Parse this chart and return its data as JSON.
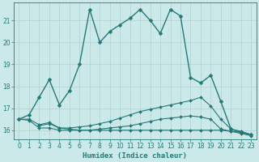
{
  "title": "",
  "xlabel": "Humidex (Indice chaleur)",
  "background_color": "#cce9e9",
  "grid_color": "#b0d0d0",
  "line_color": "#267878",
  "xlim": [
    -0.5,
    23.5
  ],
  "ylim": [
    15.6,
    21.8
  ],
  "yticks": [
    16,
    17,
    18,
    19,
    20,
    21
  ],
  "xticks": [
    0,
    1,
    2,
    3,
    4,
    5,
    6,
    7,
    8,
    9,
    10,
    11,
    12,
    13,
    14,
    15,
    16,
    17,
    18,
    19,
    20,
    21,
    22,
    23
  ],
  "series": [
    {
      "x": [
        0,
        1,
        2,
        3,
        4,
        5,
        6,
        7,
        8,
        9,
        10,
        11,
        12,
        13,
        14,
        15,
        16,
        17,
        18,
        19,
        20,
        21,
        22,
        23
      ],
      "y": [
        16.5,
        16.7,
        17.5,
        18.3,
        17.15,
        17.8,
        19.0,
        21.5,
        20.0,
        20.5,
        20.8,
        21.1,
        21.5,
        21.0,
        20.4,
        21.5,
        21.2,
        18.4,
        18.15,
        18.5,
        17.3,
        16.05,
        15.9,
        15.8
      ],
      "linewidth": 1.0,
      "markersize": 2.5
    },
    {
      "x": [
        0,
        1,
        2,
        3,
        4,
        5,
        6,
        7,
        8,
        9,
        10,
        11,
        12,
        13,
        14,
        15,
        16,
        17,
        18,
        19,
        20,
        21,
        22,
        23
      ],
      "y": [
        16.5,
        16.5,
        16.25,
        16.35,
        16.1,
        16.1,
        16.15,
        16.2,
        16.3,
        16.4,
        16.55,
        16.7,
        16.85,
        16.95,
        17.05,
        17.15,
        17.25,
        17.35,
        17.5,
        17.1,
        16.5,
        16.05,
        15.95,
        15.8
      ],
      "linewidth": 0.8,
      "markersize": 2.0
    },
    {
      "x": [
        0,
        1,
        2,
        3,
        4,
        5,
        6,
        7,
        8,
        9,
        10,
        11,
        12,
        13,
        14,
        15,
        16,
        17,
        18,
        19,
        20,
        21,
        22,
        23
      ],
      "y": [
        16.5,
        16.45,
        16.1,
        16.1,
        16.0,
        16.0,
        16.0,
        16.0,
        16.0,
        16.0,
        16.0,
        16.0,
        16.0,
        16.0,
        16.0,
        16.0,
        16.0,
        16.0,
        16.0,
        16.0,
        16.0,
        15.95,
        15.9,
        15.8
      ],
      "linewidth": 0.8,
      "markersize": 2.0
    },
    {
      "x": [
        2,
        3,
        4,
        5,
        6,
        7,
        8,
        9,
        10,
        11,
        12,
        13,
        14,
        15,
        16,
        17,
        18,
        19,
        20,
        21,
        22,
        23
      ],
      "y": [
        16.2,
        16.3,
        16.1,
        16.05,
        16.0,
        16.0,
        16.05,
        16.1,
        16.15,
        16.2,
        16.3,
        16.4,
        16.5,
        16.55,
        16.6,
        16.65,
        16.6,
        16.5,
        16.05,
        15.95,
        15.85,
        15.75
      ],
      "linewidth": 0.8,
      "markersize": 2.0
    }
  ]
}
